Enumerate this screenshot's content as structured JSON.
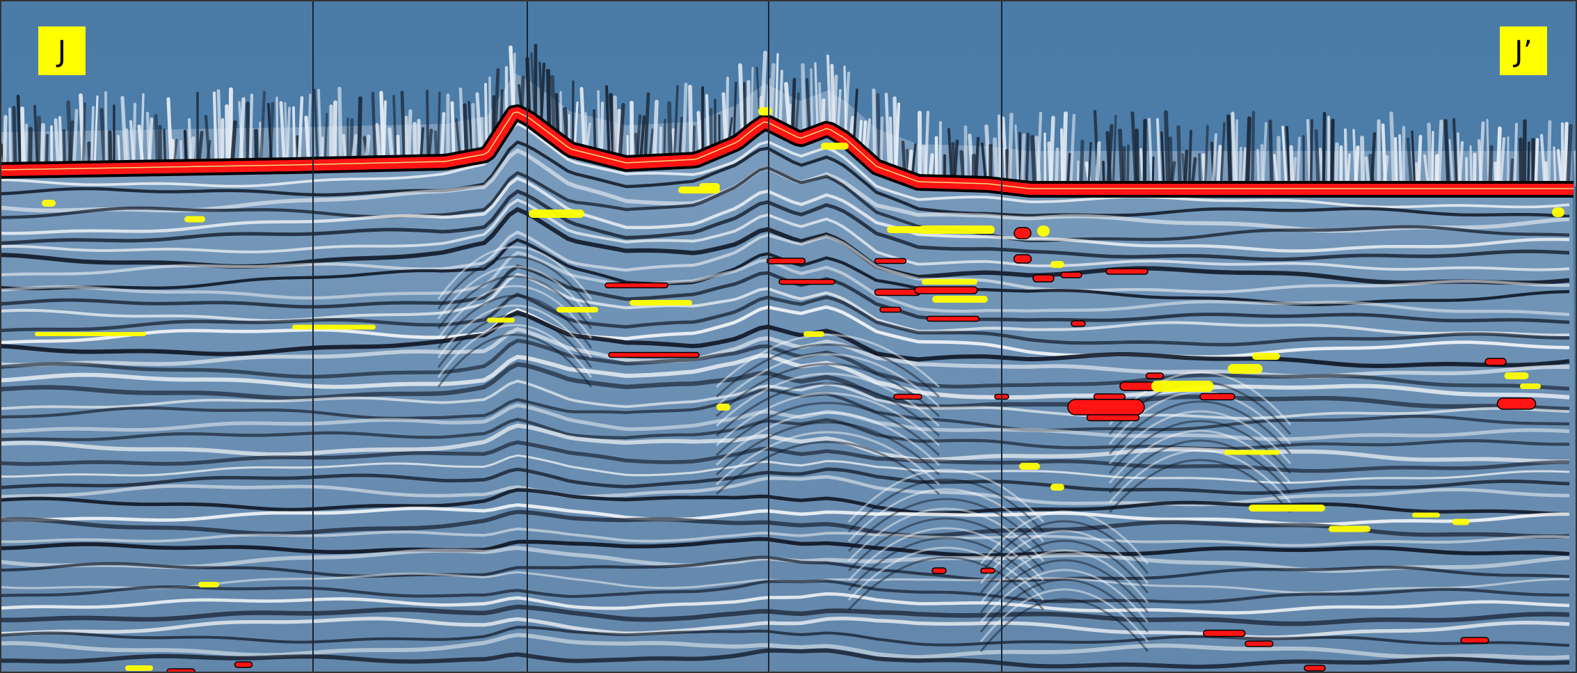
{
  "profile": {
    "start_label": "J",
    "end_label": "J’"
  },
  "colors": {
    "water": "#4a7aa6",
    "trough": "#0b1220",
    "peak": "#ffffff",
    "body": "#6a8fb2",
    "horizon_red": "#ff1414",
    "horizon_yellow": "#ffff00",
    "tie_line": "#1a2430"
  },
  "tie_line_count": 4
}
